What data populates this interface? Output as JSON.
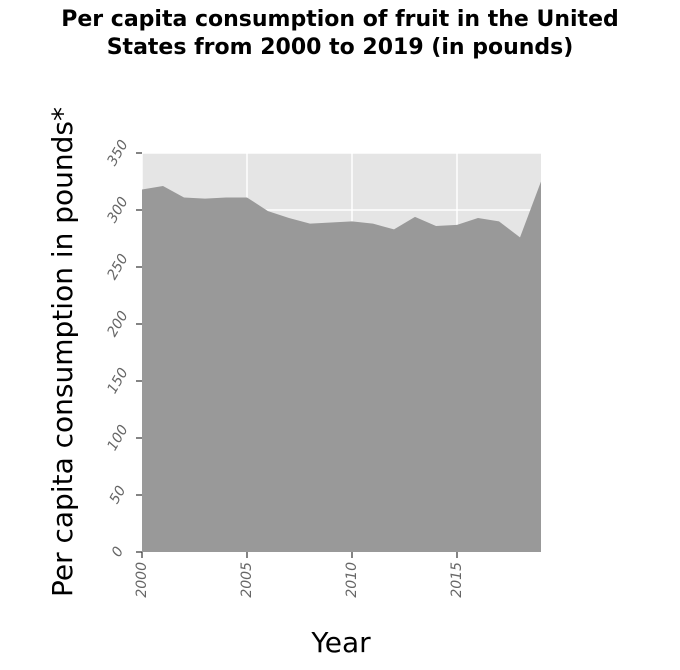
{
  "chart_data": {
    "type": "area",
    "title": "Per capita consumption of fruit in the United States from 2000 to 2019 (in pounds)",
    "title_lines": [
      "Per capita consumption of fruit in the United",
      "States from 2000 to 2019 (in pounds)"
    ],
    "xlabel": "Year",
    "ylabel": "Per capita consumption in pounds*",
    "xlim": [
      2000,
      2019
    ],
    "ylim": [
      0,
      350
    ],
    "x_ticks": [
      2000,
      2005,
      2010,
      2015
    ],
    "y_ticks": [
      0,
      50,
      100,
      150,
      200,
      250,
      300,
      350
    ],
    "grid": true,
    "legend": "none",
    "colors": {
      "panel": "#e5e5e5",
      "area": "#999999",
      "grid": "#ffffff"
    },
    "series": [
      {
        "x": [
          2000,
          2001,
          2002,
          2003,
          2004,
          2005,
          2006,
          2007,
          2008,
          2009,
          2010,
          2011,
          2012,
          2013,
          2014,
          2015,
          2016,
          2017,
          2018,
          2019
        ],
        "values": [
          318,
          321,
          311,
          310,
          311,
          311,
          299,
          293,
          288,
          289,
          290,
          288,
          283,
          294,
          286,
          287,
          293,
          290,
          276,
          325
        ]
      }
    ]
  }
}
